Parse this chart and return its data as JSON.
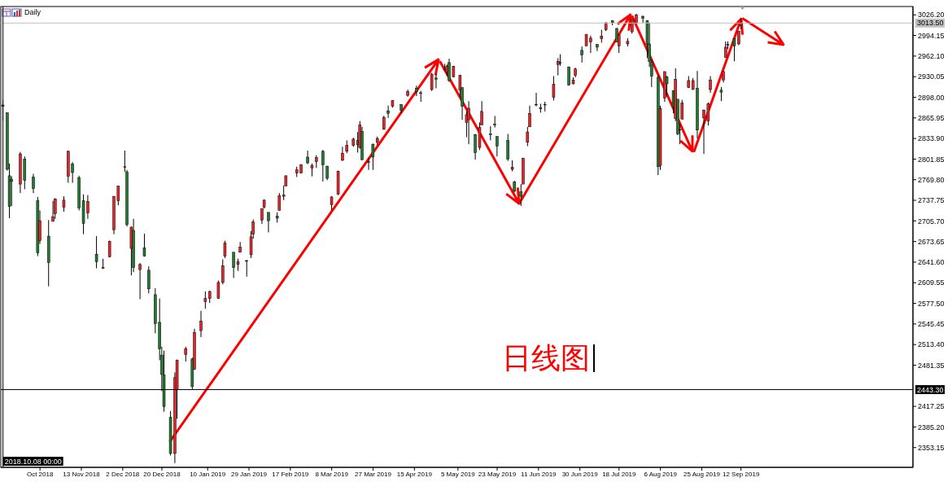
{
  "chart_data": {
    "type": "candlestick",
    "title": "Daily",
    "annotations": [
      "日线图"
    ],
    "x": [
      "2018-10-08",
      "2018-10-10",
      "2018-10-11",
      "2018-10-12",
      "2018-10-16",
      "2018-10-18",
      "2018-10-22",
      "2018-10-24",
      "2018-10-25",
      "2018-10-29",
      "2018-10-31",
      "2018-11-01",
      "2018-11-05",
      "2018-11-07",
      "2018-11-09",
      "2018-11-12",
      "2018-11-14",
      "2018-11-16",
      "2018-11-20",
      "2018-11-23",
      "2018-11-26",
      "2018-11-28",
      "2018-11-30",
      "2018-12-03",
      "2018-12-04",
      "2018-12-06",
      "2018-12-07",
      "2018-12-10",
      "2018-12-12",
      "2018-12-14",
      "2018-12-17",
      "2018-12-19",
      "2018-12-20",
      "2018-12-21",
      "2018-12-24",
      "2018-12-26",
      "2018-12-27",
      "2018-12-31",
      "2019-01-03",
      "2019-01-04",
      "2019-01-07",
      "2019-01-09",
      "2019-01-11",
      "2019-01-15",
      "2019-01-17",
      "2019-01-18",
      "2019-01-22",
      "2019-01-24",
      "2019-01-25",
      "2019-01-28",
      "2019-01-30",
      "2019-01-31",
      "2019-02-04",
      "2019-02-05",
      "2019-02-07",
      "2019-02-11",
      "2019-02-12",
      "2019-02-14",
      "2019-02-15",
      "2019-02-20",
      "2019-02-22",
      "2019-02-25",
      "2019-02-27",
      "2019-03-01",
      "2019-03-04",
      "2019-03-06",
      "2019-03-08",
      "2019-03-11",
      "2019-03-13",
      "2019-03-15",
      "2019-03-18",
      "2019-03-20",
      "2019-03-21",
      "2019-03-22",
      "2019-03-25",
      "2019-03-27",
      "2019-03-29",
      "2019-04-01",
      "2019-04-03",
      "2019-04-05",
      "2019-04-09",
      "2019-04-12",
      "2019-04-16",
      "2019-04-18",
      "2019-04-23",
      "2019-04-25",
      "2019-04-29",
      "2019-04-30",
      "2019-05-01",
      "2019-05-03",
      "2019-05-06",
      "2019-05-07",
      "2019-05-09",
      "2019-05-10",
      "2019-05-13",
      "2019-05-15",
      "2019-05-16",
      "2019-05-20",
      "2019-05-22",
      "2019-05-23",
      "2019-05-28",
      "2019-05-30",
      "2019-05-31",
      "2019-06-03",
      "2019-06-04",
      "2019-06-06",
      "2019-06-07",
      "2019-06-10",
      "2019-06-12",
      "2019-06-14",
      "2019-06-18",
      "2019-06-20",
      "2019-06-21",
      "2019-06-25",
      "2019-06-27",
      "2019-06-28",
      "2019-07-01",
      "2019-07-03",
      "2019-07-05",
      "2019-07-08",
      "2019-07-10",
      "2019-07-12",
      "2019-07-15",
      "2019-07-17",
      "2019-07-18",
      "2019-07-22",
      "2019-07-24",
      "2019-07-26",
      "2019-07-29",
      "2019-07-31",
      "2019-08-01",
      "2019-08-02",
      "2019-08-05",
      "2019-08-06",
      "2019-08-08",
      "2019-08-09",
      "2019-08-12",
      "2019-08-13",
      "2019-08-14",
      "2019-08-15",
      "2019-08-16",
      "2019-08-19",
      "2019-08-21",
      "2019-08-23",
      "2019-08-26",
      "2019-08-28",
      "2019-08-29",
      "2019-09-03",
      "2019-09-04",
      "2019-09-05",
      "2019-09-06",
      "2019-09-09",
      "2019-09-11",
      "2019-09-12"
    ],
    "ohlc": [
      [
        2886,
        2894,
        2862,
        2884
      ],
      [
        2874,
        2874,
        2784,
        2786
      ],
      [
        2776,
        2795,
        2710,
        2728
      ],
      [
        2770,
        2775,
        2729,
        2767
      ],
      [
        2763,
        2813,
        2749,
        2810
      ],
      [
        2802,
        2806,
        2755,
        2769
      ],
      [
        2774,
        2779,
        2749,
        2756
      ],
      [
        2737,
        2743,
        2651,
        2656
      ],
      [
        2675,
        2722,
        2670,
        2706
      ],
      [
        2682,
        2707,
        2604,
        2641
      ],
      [
        2705,
        2737,
        2705,
        2712
      ],
      [
        2717,
        2741,
        2709,
        2740
      ],
      [
        2727,
        2744,
        2720,
        2738
      ],
      [
        2775,
        2815,
        2765,
        2814
      ],
      [
        2794,
        2797,
        2765,
        2781
      ],
      [
        2773,
        2776,
        2722,
        2726
      ],
      [
        2737,
        2747,
        2685,
        2702
      ],
      [
        2718,
        2746,
        2709,
        2736
      ],
      [
        2654,
        2682,
        2632,
        2642
      ],
      [
        2633,
        2647,
        2631,
        2633
      ],
      [
        2650,
        2675,
        2649,
        2674
      ],
      [
        2692,
        2744,
        2685,
        2744
      ],
      [
        2737,
        2760,
        2730,
        2760
      ],
      [
        2790,
        2815,
        2782,
        2790
      ],
      [
        2782,
        2785,
        2697,
        2700
      ],
      [
        2663,
        2697,
        2621,
        2696
      ],
      [
        2691,
        2709,
        2626,
        2633
      ],
      [
        2630,
        2640,
        2584,
        2638
      ],
      [
        2664,
        2686,
        2650,
        2651
      ],
      [
        2629,
        2635,
        2593,
        2600
      ],
      [
        2591,
        2601,
        2531,
        2546
      ],
      [
        2548,
        2585,
        2489,
        2507
      ],
      [
        2497,
        2510,
        2441,
        2467
      ],
      [
        2466,
        2504,
        2409,
        2417
      ],
      [
        2400,
        2410,
        2341,
        2344
      ],
      [
        2344,
        2470,
        2329,
        2462
      ],
      [
        2443,
        2490,
        2398,
        2489
      ],
      [
        2498,
        2510,
        2487,
        2507
      ],
      [
        2491,
        2493,
        2444,
        2448
      ],
      [
        2475,
        2538,
        2474,
        2532
      ],
      [
        2535,
        2566,
        2525,
        2550
      ],
      [
        2580,
        2596,
        2569,
        2585
      ],
      [
        2585,
        2597,
        2578,
        2596
      ],
      [
        2585,
        2613,
        2585,
        2610
      ],
      [
        2610,
        2646,
        2607,
        2636
      ],
      [
        2651,
        2675,
        2648,
        2671
      ],
      [
        2657,
        2657,
        2617,
        2633
      ],
      [
        2638,
        2647,
        2628,
        2642
      ],
      [
        2657,
        2673,
        2657,
        2665
      ],
      [
        2644,
        2645,
        2619,
        2644
      ],
      [
        2653,
        2690,
        2648,
        2681
      ],
      [
        2685,
        2708,
        2678,
        2704
      ],
      [
        2707,
        2725,
        2701,
        2725
      ],
      [
        2727,
        2739,
        2725,
        2738
      ],
      [
        2719,
        2719,
        2688,
        2706
      ],
      [
        2713,
        2719,
        2703,
        2710
      ],
      [
        2722,
        2749,
        2722,
        2745
      ],
      [
        2744,
        2761,
        2738,
        2746
      ],
      [
        2760,
        2776,
        2760,
        2776
      ],
      [
        2780,
        2790,
        2774,
        2785
      ],
      [
        2780,
        2794,
        2780,
        2793
      ],
      [
        2805,
        2815,
        2794,
        2796
      ],
      [
        2788,
        2795,
        2775,
        2792
      ],
      [
        2798,
        2808,
        2788,
        2804
      ],
      [
        2814,
        2816,
        2767,
        2793
      ],
      [
        2791,
        2791,
        2769,
        2772
      ],
      [
        2731,
        2744,
        2722,
        2743
      ],
      [
        2747,
        2784,
        2746,
        2783
      ],
      [
        2800,
        2821,
        2799,
        2811
      ],
      [
        2814,
        2831,
        2811,
        2823
      ],
      [
        2823,
        2835,
        2821,
        2833
      ],
      [
        2831,
        2844,
        2812,
        2824
      ],
      [
        2820,
        2861,
        2818,
        2855
      ],
      [
        2845,
        2852,
        2800,
        2801
      ],
      [
        2797,
        2804,
        2785,
        2798
      ],
      [
        2825,
        2826,
        2785,
        2805
      ],
      [
        2828,
        2837,
        2824,
        2834
      ],
      [
        2848,
        2869,
        2848,
        2867
      ],
      [
        2877,
        2885,
        2866,
        2873
      ],
      [
        2884,
        2893,
        2882,
        2893
      ],
      [
        2887,
        2887,
        2873,
        2878
      ],
      [
        2901,
        2910,
        2899,
        2907
      ],
      [
        2912,
        2916,
        2900,
        2907
      ],
      [
        2904,
        2908,
        2891,
        2905
      ],
      [
        2910,
        2936,
        2908,
        2934
      ],
      [
        2928,
        2934,
        2912,
        2926
      ],
      [
        2941,
        2950,
        2939,
        2943
      ],
      [
        2937,
        2949,
        2932,
        2946
      ],
      [
        2952,
        2958,
        2922,
        2924
      ],
      [
        2930,
        2947,
        2929,
        2946
      ],
      [
        2909,
        2933,
        2898,
        2932
      ],
      [
        2913,
        2913,
        2863,
        2884
      ],
      [
        2859,
        2876,
        2836,
        2871
      ],
      [
        2863,
        2892,
        2825,
        2881
      ],
      [
        2840,
        2841,
        2801,
        2812
      ],
      [
        2820,
        2859,
        2816,
        2851
      ],
      [
        2855,
        2892,
        2855,
        2876
      ],
      [
        2841,
        2853,
        2831,
        2840
      ],
      [
        2856,
        2869,
        2851,
        2856
      ],
      [
        2837,
        2837,
        2806,
        2822
      ],
      [
        2831,
        2841,
        2799,
        2802
      ],
      [
        2786,
        2800,
        2783,
        2789
      ],
      [
        2766,
        2768,
        2750,
        2752
      ],
      [
        2751,
        2763,
        2729,
        2744
      ],
      [
        2763,
        2804,
        2763,
        2803
      ],
      [
        2828,
        2852,
        2822,
        2844
      ],
      [
        2852,
        2885,
        2852,
        2873
      ],
      [
        2886,
        2905,
        2884,
        2887
      ],
      [
        2882,
        2888,
        2874,
        2880
      ],
      [
        2887,
        2891,
        2876,
        2887
      ],
      [
        2898,
        2931,
        2893,
        2918
      ],
      [
        2949,
        2959,
        2932,
        2954
      ],
      [
        2952,
        2965,
        2947,
        2951
      ],
      [
        2945,
        2946,
        2916,
        2917
      ],
      [
        2919,
        2929,
        2918,
        2925
      ],
      [
        2932,
        2944,
        2929,
        2942
      ],
      [
        2971,
        2977,
        2952,
        2964
      ],
      [
        2978,
        2996,
        2978,
        2996
      ],
      [
        2984,
        2994,
        2967,
        2990
      ],
      [
        2980,
        2981,
        2970,
        2976
      ],
      [
        2989,
        3003,
        2983,
        2993
      ],
      [
        3003,
        3014,
        3001,
        3014
      ],
      [
        3017,
        3018,
        3010,
        3014
      ],
      [
        3005,
        3006,
        2984,
        2984
      ],
      [
        2978,
        2996,
        2967,
        2995
      ],
      [
        2981,
        2990,
        2977,
        2985
      ],
      [
        3000,
        3020,
        2997,
        3020
      ],
      [
        3013,
        3028,
        3013,
        3026
      ],
      [
        3024,
        3025,
        3014,
        3021
      ],
      [
        3017,
        3018,
        2959,
        2980
      ],
      [
        2981,
        3014,
        2945,
        2954
      ],
      [
        2953,
        2957,
        2914,
        2931
      ],
      [
        2929,
        2933,
        2777,
        2790
      ],
      [
        2792,
        2885,
        2785,
        2880
      ],
      [
        2897,
        2938,
        2891,
        2938
      ],
      [
        2930,
        2931,
        2899,
        2919
      ],
      [
        2908,
        2909,
        2873,
        2883
      ],
      [
        2865,
        2943,
        2861,
        2926
      ],
      [
        2895,
        2895,
        2839,
        2841
      ],
      [
        2847,
        2857,
        2825,
        2848
      ],
      [
        2864,
        2894,
        2864,
        2889
      ],
      [
        2913,
        2931,
        2913,
        2924
      ],
      [
        2910,
        2928,
        2910,
        2924
      ],
      [
        2912,
        2939,
        2834,
        2847
      ],
      [
        2866,
        2879,
        2810,
        2878
      ],
      [
        2861,
        2890,
        2854,
        2888
      ],
      [
        2910,
        2931,
        2905,
        2925
      ],
      [
        2909,
        2914,
        2892,
        2906
      ],
      [
        2925,
        2939,
        2921,
        2938
      ],
      [
        2960,
        2985,
        2960,
        2976
      ],
      [
        2980,
        2985,
        2973,
        2979
      ],
      [
        2989,
        2990,
        2954,
        2978
      ],
      [
        2981,
        3001,
        2979,
        3001
      ],
      [
        3009,
        3021,
        3004,
        3013.5
      ]
    ],
    "xlim": [
      "2018-10-07",
      "2019-11-30"
    ],
    "xticks": [
      {
        "value": "2018-10-25",
        "label": "Oct 2018"
      },
      {
        "value": "2018-11-13",
        "label": "13 Nov 2018"
      },
      {
        "value": "2018-12-02",
        "label": "2 Dec 2018"
      },
      {
        "value": "2018-12-20",
        "label": "20 Dec 2018"
      },
      {
        "value": "2019-01-10",
        "label": "10 Jan 2019"
      },
      {
        "value": "2019-01-29",
        "label": "29 Jan 2019"
      },
      {
        "value": "2019-02-17",
        "label": "17 Feb 2019"
      },
      {
        "value": "2019-03-08",
        "label": "8 Mar 2019"
      },
      {
        "value": "2019-03-27",
        "label": "27 Mar 2019"
      },
      {
        "value": "2019-04-15",
        "label": "15 Apr 2019"
      },
      {
        "value": "2019-05-05",
        "label": "5 May 2019"
      },
      {
        "value": "2019-05-23",
        "label": "23 May 2019"
      },
      {
        "value": "2019-06-11",
        "label": "11 Jun 2019"
      },
      {
        "value": "2019-06-30",
        "label": "30 Jun 2019"
      },
      {
        "value": "2019-07-18",
        "label": "18 Jul 2019"
      },
      {
        "value": "2019-08-06",
        "label": "6 Aug 2019"
      },
      {
        "value": "2019-08-25",
        "label": "25 Aug 2019"
      },
      {
        "value": "2019-09-12",
        "label": "12 Sep 2019"
      }
    ],
    "ylim": [
      2322.4,
      3039.2
    ],
    "yticks": [
      {
        "value": 2353.15,
        "label": "2353.15"
      },
      {
        "value": 2385.2,
        "label": "2385.20"
      },
      {
        "value": 2417.25,
        "label": "2417.25"
      },
      {
        "value": 2481.35,
        "label": "2481.35"
      },
      {
        "value": 2513.4,
        "label": "2513.40"
      },
      {
        "value": 2545.45,
        "label": "2545.45"
      },
      {
        "value": 2577.5,
        "label": "2577.50"
      },
      {
        "value": 2609.55,
        "label": "2609.55"
      },
      {
        "value": 2641.6,
        "label": "2641.60"
      },
      {
        "value": 2673.65,
        "label": "2673.65"
      },
      {
        "value": 2705.7,
        "label": "2705.70"
      },
      {
        "value": 2737.75,
        "label": "2737.75"
      },
      {
        "value": 2769.8,
        "label": "2769.80"
      },
      {
        "value": 2801.85,
        "label": "2801.85"
      },
      {
        "value": 2833.9,
        "label": "2833.90"
      },
      {
        "value": 2865.95,
        "label": "2865.95"
      },
      {
        "value": 2898,
        "label": "2898.00"
      },
      {
        "value": 2930.05,
        "label": "2930.05"
      },
      {
        "value": 2962.1,
        "label": "2962.10"
      },
      {
        "value": 2994.15,
        "label": "2994.15"
      },
      {
        "value": 3026.2,
        "label": "3026.20"
      }
    ],
    "ref_lines": [
      {
        "axis": "y",
        "value": 3013.5,
        "label": "3013.50",
        "color": "#c0c0c0"
      },
      {
        "axis": "y",
        "value": 2443.3,
        "label": "2443.30",
        "color": "#000000"
      },
      {
        "axis": "x",
        "value": "2018-10-08",
        "label": "2018.10.08 00:00",
        "color": "#000000"
      }
    ]
  }
}
